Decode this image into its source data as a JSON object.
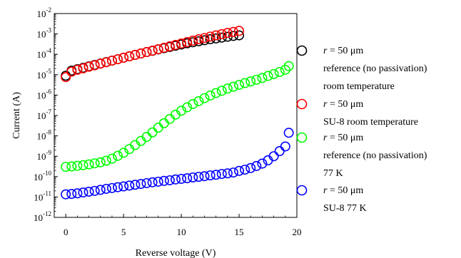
{
  "chart_data": {
    "type": "scatter",
    "title": "",
    "xlabel": "Reverse voltage (V)",
    "ylabel": "Current (A)",
    "xlim": [
      -1,
      20
    ],
    "ylim_log10": [
      -12,
      -2
    ],
    "y_scale": "log",
    "x_ticks": [
      {
        "value": 0,
        "label": "0"
      },
      {
        "value": 5,
        "label": "5"
      },
      {
        "value": 10,
        "label": "10"
      },
      {
        "value": 15,
        "label": "15"
      },
      {
        "value": 20,
        "label": "20"
      }
    ],
    "y_ticks": [
      {
        "value": -2,
        "label": "10",
        "exp": "-2"
      },
      {
        "value": -3,
        "label": "10",
        "exp": "-3"
      },
      {
        "value": -4,
        "label": "10",
        "exp": "-4"
      },
      {
        "value": -5,
        "label": "10",
        "exp": "-5"
      },
      {
        "value": -6,
        "label": "10",
        "exp": "-6"
      },
      {
        "value": -7,
        "label": "10",
        "exp": "-7"
      },
      {
        "value": -8,
        "label": "10",
        "exp": "-8"
      },
      {
        "value": -9,
        "label": "10",
        "exp": "-9"
      },
      {
        "value": -10,
        "label": "10",
        "exp": "-10"
      },
      {
        "value": -11,
        "label": "10",
        "exp": "-11"
      },
      {
        "value": -12,
        "label": "10",
        "exp": "-12"
      }
    ],
    "legend_position": "right",
    "marker": "open-circle",
    "series": [
      {
        "color": "#000000",
        "legend_lines": [
          "reference (no passivation)",
          "room temperature"
        ],
        "legend_r": "r",
        "legend_value": " = 50 μm",
        "x": [
          0,
          0.5,
          1,
          1.5,
          2,
          2.5,
          3,
          3.5,
          4,
          4.5,
          5,
          5.5,
          6,
          6.5,
          7,
          7.5,
          8,
          8.5,
          9,
          9.5,
          10,
          10.5,
          11,
          11.5,
          12,
          12.5,
          13,
          13.5,
          14,
          14.5,
          15
        ],
        "log10_y": [
          -5.05,
          -4.8,
          -4.73,
          -4.66,
          -4.59,
          -4.52,
          -4.45,
          -4.38,
          -4.31,
          -4.24,
          -4.17,
          -4.1,
          -4.03,
          -3.96,
          -3.89,
          -3.83,
          -3.76,
          -3.7,
          -3.64,
          -3.58,
          -3.52,
          -3.46,
          -3.41,
          -3.36,
          -3.31,
          -3.26,
          -3.22,
          -3.18,
          -3.14,
          -3.1,
          -3.07
        ]
      },
      {
        "color": "#ff0000",
        "legend_lines": [
          "SU-8  room temperature"
        ],
        "legend_r": "r",
        "legend_value": " = 50 μm",
        "x": [
          0,
          0.5,
          1,
          1.5,
          2,
          2.5,
          3,
          3.5,
          4,
          4.5,
          5,
          5.5,
          6,
          6.5,
          7,
          7.5,
          8,
          8.5,
          9,
          9.5,
          10,
          10.5,
          11,
          11.5,
          12,
          12.5,
          13,
          13.5,
          14,
          14.5,
          15
        ],
        "log10_y": [
          -5.12,
          -4.85,
          -4.76,
          -4.69,
          -4.61,
          -4.54,
          -4.46,
          -4.39,
          -4.31,
          -4.24,
          -4.17,
          -4.1,
          -4.03,
          -3.96,
          -3.89,
          -3.82,
          -3.75,
          -3.68,
          -3.61,
          -3.54,
          -3.47,
          -3.4,
          -3.33,
          -3.26,
          -3.2,
          -3.13,
          -3.07,
          -3.01,
          -2.95,
          -2.9,
          -2.85
        ]
      },
      {
        "color": "#00ff00",
        "legend_lines": [
          "reference (no passivation)",
          "77 K"
        ],
        "legend_r": "r",
        "legend_value": " = 50 μm",
        "x": [
          0,
          0.5,
          1,
          1.5,
          2,
          2.5,
          3,
          3.5,
          4,
          4.5,
          5,
          5.5,
          6,
          6.5,
          7,
          7.5,
          8,
          8.5,
          9,
          9.5,
          10,
          10.5,
          11,
          11.5,
          12,
          12.5,
          13,
          13.5,
          14,
          14.5,
          15,
          15.5,
          16,
          16.5,
          17,
          17.5,
          18,
          18.5,
          19,
          19.3
        ],
        "log10_y": [
          -9.52,
          -9.5,
          -9.47,
          -9.44,
          -9.4,
          -9.35,
          -9.3,
          -9.22,
          -9.12,
          -8.98,
          -8.83,
          -8.65,
          -8.45,
          -8.25,
          -8.05,
          -7.83,
          -7.6,
          -7.38,
          -7.17,
          -6.96,
          -6.77,
          -6.6,
          -6.44,
          -6.3,
          -6.15,
          -6.02,
          -5.9,
          -5.79,
          -5.68,
          -5.59,
          -5.5,
          -5.41,
          -5.33,
          -5.25,
          -5.16,
          -5.06,
          -4.97,
          -4.87,
          -4.76,
          -4.58
        ]
      },
      {
        "color": "#0000ff",
        "legend_lines": [
          "SU-8  77 K"
        ],
        "legend_r": "r",
        "legend_value": " = 50 μm",
        "x": [
          0,
          0.5,
          1,
          1.5,
          2,
          2.5,
          3,
          3.5,
          4,
          4.5,
          5,
          5.5,
          6,
          6.5,
          7,
          7.5,
          8,
          8.5,
          9,
          9.5,
          10,
          10.5,
          11,
          11.5,
          12,
          12.5,
          13,
          13.5,
          14,
          14.5,
          15,
          15.5,
          16,
          16.5,
          17,
          17.5,
          18,
          18.5,
          19,
          19.3
        ],
        "log10_y": [
          -10.87,
          -10.85,
          -10.82,
          -10.78,
          -10.74,
          -10.7,
          -10.65,
          -10.6,
          -10.56,
          -10.52,
          -10.48,
          -10.44,
          -10.4,
          -10.36,
          -10.32,
          -10.28,
          -10.25,
          -10.21,
          -10.18,
          -10.14,
          -10.11,
          -10.08,
          -10.04,
          -10.01,
          -9.98,
          -9.94,
          -9.91,
          -9.87,
          -9.84,
          -9.8,
          -9.72,
          -9.66,
          -9.58,
          -9.48,
          -9.36,
          -9.2,
          -9.0,
          -8.75,
          -8.52,
          -7.85
        ]
      }
    ]
  }
}
